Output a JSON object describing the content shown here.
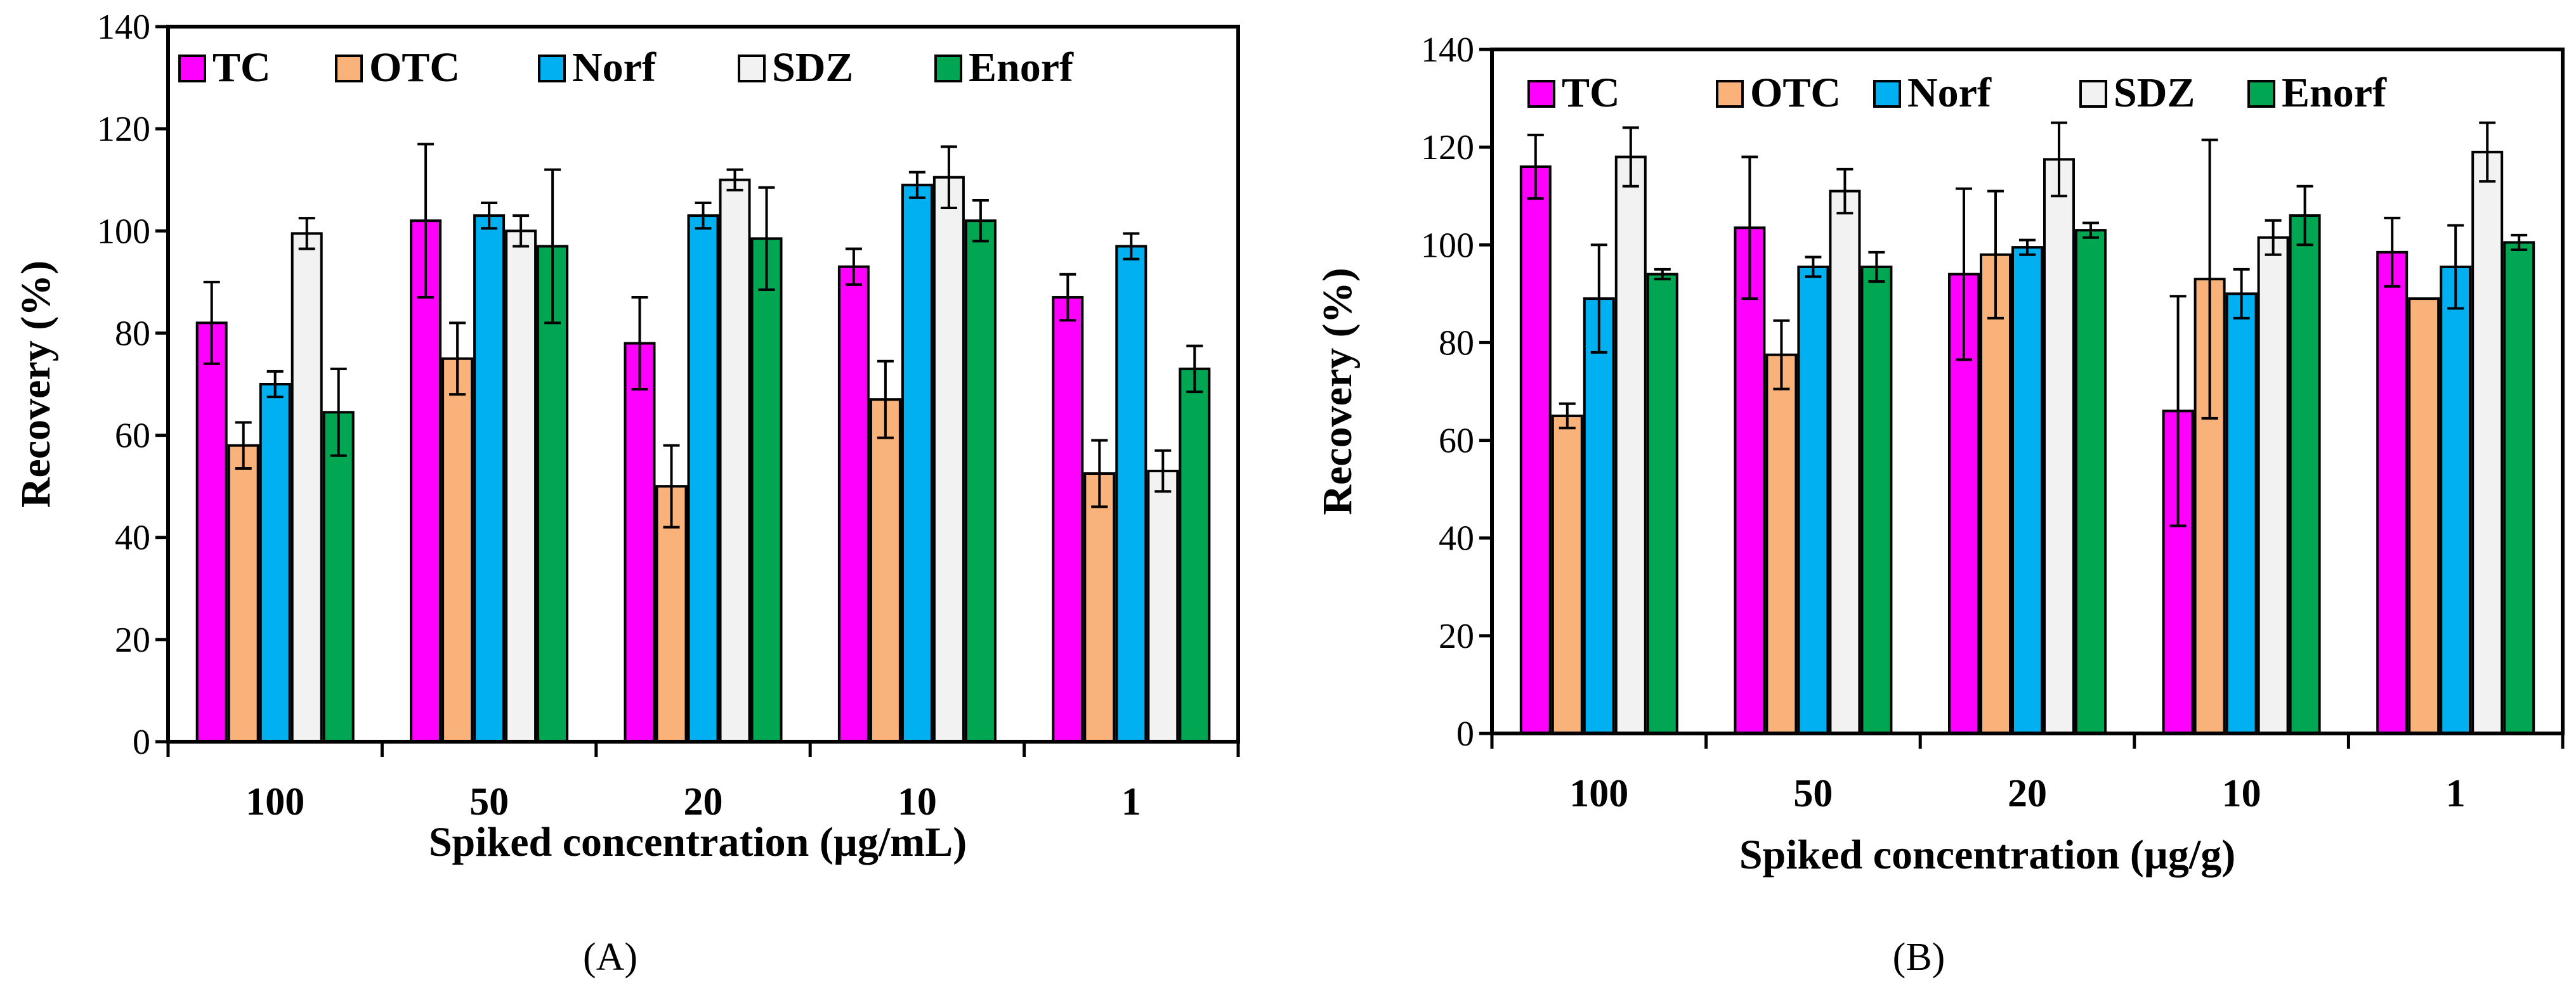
{
  "chart_data": [
    {
      "type": "bar",
      "panel_label": "(A)",
      "xlabel": "Spiked concentration (µg/mL)",
      "ylabel": "Recovery (%)",
      "categories": [
        "100",
        "50",
        "20",
        "10",
        "1"
      ],
      "ylim": [
        0,
        140
      ],
      "yticks": [
        0,
        20,
        40,
        60,
        80,
        100,
        120,
        140
      ],
      "grid": false,
      "legend_position": "top",
      "series": [
        {
          "name": "TC",
          "color": "#ff00ff",
          "values": [
            82,
            102,
            78,
            93,
            87
          ],
          "errors": [
            8,
            15,
            9,
            3.5,
            4.5
          ]
        },
        {
          "name": "OTC",
          "color": "#fab27b",
          "values": [
            58,
            75,
            50,
            67,
            52.5
          ],
          "errors": [
            4.5,
            7,
            8,
            7.5,
            6.5
          ]
        },
        {
          "name": "Norf",
          "color": "#00b0f0",
          "values": [
            70,
            103,
            103,
            109,
            97
          ],
          "errors": [
            2.5,
            2.5,
            2.5,
            2.5,
            2.5
          ]
        },
        {
          "name": "SDZ",
          "color": "#f2f2f2",
          "values": [
            99.5,
            100,
            110,
            110.5,
            53
          ],
          "errors": [
            3,
            3,
            2,
            6,
            4
          ]
        },
        {
          "name": "Enorf",
          "color": "#00a651",
          "values": [
            64.5,
            97,
            98.5,
            102,
            73
          ],
          "errors": [
            8.5,
            15,
            10,
            4,
            4.5
          ]
        }
      ]
    },
    {
      "type": "bar",
      "panel_label": "(B)",
      "xlabel": "Spiked concentration (µg/g)",
      "ylabel": "Recovery (%)",
      "categories": [
        "100",
        "50",
        "20",
        "10",
        "1"
      ],
      "ylim": [
        0,
        140
      ],
      "yticks": [
        0,
        20,
        40,
        60,
        80,
        100,
        120,
        140
      ],
      "grid": false,
      "legend_position": "top",
      "series": [
        {
          "name": "TC",
          "color": "#ff00ff",
          "values": [
            116,
            103.5,
            94,
            66,
            98.5
          ],
          "errors": [
            6.5,
            14.5,
            17.5,
            23.5,
            7
          ]
        },
        {
          "name": "OTC",
          "color": "#fab27b",
          "values": [
            65,
            77.5,
            98,
            93,
            89
          ],
          "errors": [
            2.5,
            7,
            13,
            28.5,
            0
          ]
        },
        {
          "name": "Norf",
          "color": "#00b0f0",
          "values": [
            89,
            95.5,
            99.5,
            90,
            95.5
          ],
          "errors": [
            11,
            2,
            1.5,
            5,
            8.5
          ]
        },
        {
          "name": "SDZ",
          "color": "#f2f2f2",
          "values": [
            118,
            111,
            117.5,
            101.5,
            119
          ],
          "errors": [
            6,
            4.5,
            7.5,
            3.5,
            6
          ]
        },
        {
          "name": "Enorf",
          "color": "#00a651",
          "values": [
            94,
            95.5,
            103,
            106,
            100.5
          ],
          "errors": [
            1,
            3,
            1.5,
            6,
            1.5
          ]
        }
      ]
    }
  ]
}
